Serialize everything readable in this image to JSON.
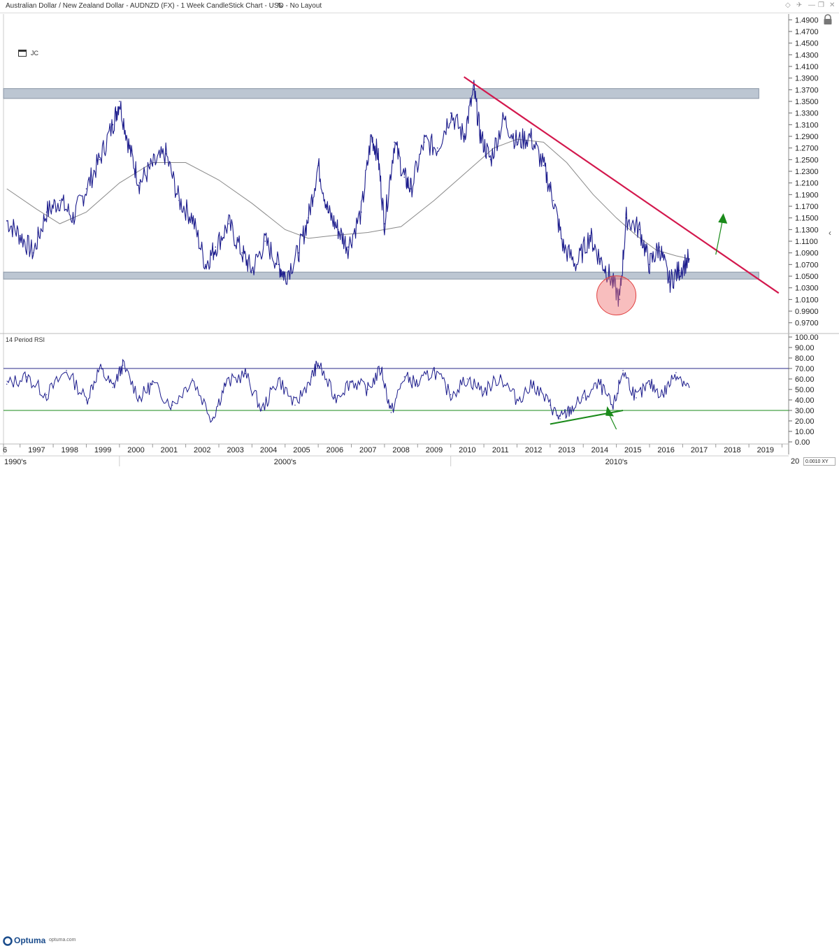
{
  "window": {
    "title": "Australian Dollar / New Zealand Dollar - AUDNZD (FX) - 1 Week CandleStick Chart - USD - No Layout"
  },
  "layout_label": "JC",
  "rsi_label": "14 Period RSI",
  "brand": {
    "name": "Optuma",
    "url": "optuma.com"
  },
  "scale_box": "0.0010 XY",
  "chart_data": [
    {
      "type": "line",
      "chart_kind": "candlestick (weekly)",
      "symbol": "AUDNZD",
      "xlabel": "",
      "ylabel": "",
      "x_ticks": [
        "6",
        "1997",
        "1998",
        "1999",
        "2000",
        "2001",
        "2002",
        "2003",
        "2004",
        "2005",
        "2006",
        "2007",
        "2008",
        "2009",
        "2010",
        "2011",
        "2012",
        "2013",
        "2014",
        "2015",
        "2016",
        "2017",
        "2018",
        "2019",
        "20"
      ],
      "decade_labels": [
        "1990's",
        "2000's",
        "2010's"
      ],
      "y_ticks": [
        "1.4900",
        "1.4700",
        "1.4500",
        "1.4300",
        "1.4100",
        "1.3900",
        "1.3700",
        "1.3500",
        "1.3300",
        "1.3100",
        "1.2900",
        "1.2700",
        "1.2500",
        "1.2300",
        "1.2100",
        "1.1900",
        "1.1700",
        "1.1500",
        "1.1300",
        "1.1100",
        "1.0900",
        "1.0700",
        "1.0500",
        "1.0300",
        "1.0100",
        "0.9900",
        "0.9700"
      ],
      "ylim": [
        0.96,
        1.5
      ],
      "xlim": [
        1996.5,
        2020.2
      ],
      "series": [
        {
          "x": [
            1996.6,
            1997.0,
            1997.4,
            1997.8,
            1998.2,
            1998.6,
            1999.0,
            1999.4,
            1999.8,
            2000.0,
            2000.3,
            2000.6,
            2001.0,
            2001.4,
            2001.8,
            2002.2,
            2002.6,
            2002.9,
            2003.3,
            2003.7,
            2004.0,
            2004.4,
            2004.8,
            2005.0,
            2005.4,
            2005.7,
            2006.0,
            2006.3,
            2006.6,
            2006.9,
            2007.3,
            2007.6,
            2007.8,
            2008.0,
            2008.3,
            2008.6,
            2008.8,
            2009.2,
            2009.6,
            2010.0,
            2010.4,
            2010.7,
            2010.9,
            2011.2,
            2011.6,
            2012.0,
            2012.4,
            2012.8,
            2013.1,
            2013.4,
            2013.8,
            2014.2,
            2014.5,
            2014.8,
            2015.1,
            2015.3,
            2015.7,
            2016.0,
            2016.3,
            2016.6,
            2016.9,
            2017.2
          ],
          "values": [
            1.145,
            1.12,
            1.09,
            1.16,
            1.18,
            1.15,
            1.2,
            1.25,
            1.31,
            1.35,
            1.27,
            1.21,
            1.24,
            1.26,
            1.18,
            1.15,
            1.07,
            1.1,
            1.14,
            1.09,
            1.06,
            1.11,
            1.07,
            1.05,
            1.09,
            1.15,
            1.24,
            1.16,
            1.13,
            1.1,
            1.16,
            1.29,
            1.26,
            1.14,
            1.28,
            1.22,
            1.2,
            1.28,
            1.27,
            1.33,
            1.29,
            1.37,
            1.29,
            1.25,
            1.32,
            1.28,
            1.29,
            1.24,
            1.18,
            1.1,
            1.07,
            1.12,
            1.08,
            1.05,
            1.01,
            1.15,
            1.13,
            1.07,
            1.1,
            1.04,
            1.06,
            1.08
          ]
        },
        {
          "name": "moving average",
          "x": [
            1996.6,
            1997.5,
            1998.2,
            1999.0,
            2000.0,
            2001.0,
            2002.0,
            2003.0,
            2004.0,
            2005.0,
            2005.7,
            2006.5,
            2007.5,
            2008.5,
            2009.5,
            2010.5,
            2011.3,
            2012.0,
            2012.8,
            2013.5,
            2014.3,
            2015.0,
            2015.6,
            2016.2,
            2016.8,
            2017.2
          ],
          "values": [
            1.2,
            1.165,
            1.14,
            1.16,
            1.21,
            1.245,
            1.245,
            1.215,
            1.175,
            1.13,
            1.115,
            1.12,
            1.125,
            1.135,
            1.18,
            1.23,
            1.27,
            1.285,
            1.28,
            1.245,
            1.19,
            1.15,
            1.12,
            1.095,
            1.085,
            1.08
          ]
        }
      ],
      "annotations": [
        "resistance band ~1.355-1.372",
        "support band ~1.045-1.057",
        "downtrend line from ~1.392 (2010.4) to ~1.021 (2019.9)",
        "circle highlighting low ~1.015 (2015)",
        "green up arrow"
      ]
    },
    {
      "type": "line",
      "title": "14 Period RSI",
      "y_ticks": [
        "100.00",
        "90.00",
        "80.00",
        "70.00",
        "60.00",
        "50.00",
        "40.00",
        "30.00",
        "20.00",
        "10.00",
        "0.00"
      ],
      "ylim": [
        0,
        100
      ],
      "reference_lines": [
        70,
        30
      ],
      "series": [
        {
          "x": [
            1996.6,
            1997.2,
            1997.8,
            1998.4,
            1999.0,
            1999.4,
            1999.8,
            2000.1,
            2000.6,
            2001.0,
            2001.6,
            2002.2,
            2002.8,
            2003.2,
            2003.8,
            2004.3,
            2004.8,
            2005.3,
            2005.8,
            2006.0,
            2006.5,
            2007.0,
            2007.5,
            2007.9,
            2008.2,
            2008.6,
            2009.0,
            2009.5,
            2010.0,
            2010.5,
            2011.0,
            2011.5,
            2012.0,
            2012.5,
            2013.0,
            2013.3,
            2013.6,
            2014.0,
            2014.5,
            2014.9,
            2015.2,
            2015.6,
            2016.0,
            2016.4,
            2016.8,
            2017.2
          ],
          "values": [
            55,
            62,
            45,
            68,
            40,
            70,
            52,
            73,
            42,
            55,
            35,
            60,
            22,
            55,
            65,
            30,
            60,
            35,
            62,
            75,
            42,
            58,
            50,
            70,
            28,
            62,
            55,
            68,
            45,
            60,
            48,
            62,
            40,
            55,
            35,
            22,
            30,
            42,
            55,
            32,
            68,
            42,
            55,
            45,
            66,
            52
          ]
        }
      ],
      "annotations": [
        "green divergence line rising from ~17 to ~30 (2013-2015)",
        "green arrow pointing at RSI low"
      ]
    }
  ]
}
